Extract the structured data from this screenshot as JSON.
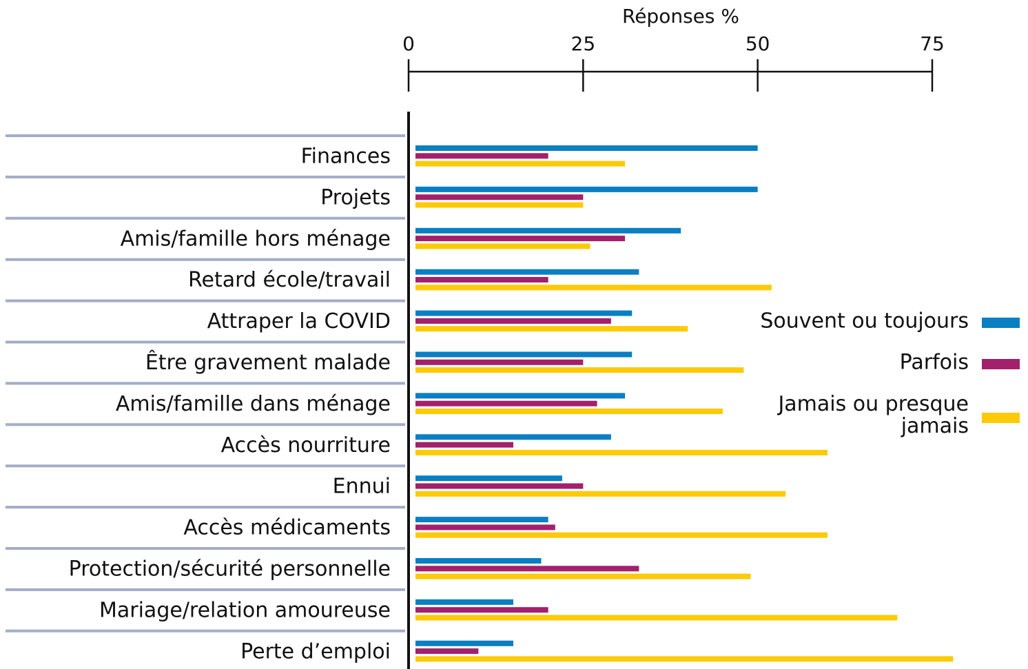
{
  "chart_data": {
    "type": "barh",
    "xlabel": "Réponses %",
    "categories": [
      "Finances",
      "Projets",
      "Amis/famille hors ménage",
      "Retard école/travail",
      "Attraper la COVID",
      "Être gravement malade",
      "Amis/famille dans ménage",
      "Accès nourriture",
      "Ennui",
      "Accès médicaments",
      "Protection/sécurité personnelle",
      "Mariage/relation amoureuse",
      "Perte d’emploi"
    ],
    "series": [
      {
        "name": "Souvent ou toujours",
        "color": "#0a7fc2",
        "values": [
          50,
          50,
          39,
          33,
          32,
          32,
          31,
          29,
          22,
          20,
          19,
          15,
          15
        ]
      },
      {
        "name": "Parfois",
        "color": "#a3206b",
        "values": [
          20,
          25,
          31,
          20,
          29,
          25,
          27,
          15,
          25,
          21,
          33,
          20,
          10
        ]
      },
      {
        "name": "Jamais ou presque jamais",
        "color": "#fdca08",
        "values": [
          31,
          25,
          26,
          52,
          40,
          48,
          45,
          60,
          54,
          60,
          49,
          70,
          78
        ]
      }
    ],
    "xlim": [
      0,
      75
    ],
    "xticks": [
      0,
      25,
      50,
      75
    ],
    "legend": "right"
  }
}
